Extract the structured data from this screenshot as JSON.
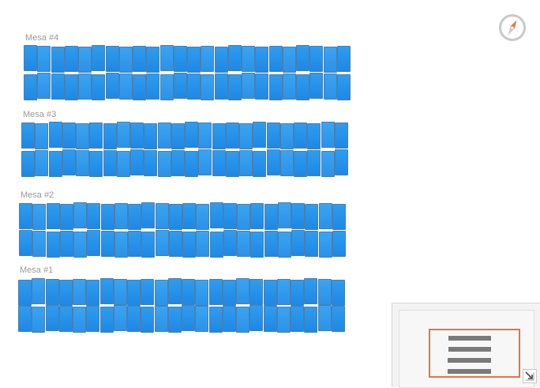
{
  "tables": [
    {
      "id": "mesa-4",
      "label": "Mesa #4",
      "rows": 2,
      "seats_per_row": 24
    },
    {
      "id": "mesa-3",
      "label": "Mesa #3",
      "rows": 2,
      "seats_per_row": 24
    },
    {
      "id": "mesa-2",
      "label": "Mesa #2",
      "rows": 2,
      "seats_per_row": 24
    },
    {
      "id": "mesa-1",
      "label": "Mesa #1",
      "rows": 2,
      "seats_per_row": 24
    }
  ],
  "colors": {
    "seat": "#1e88e5",
    "seat_border": "#4a7fb0",
    "label": "#9a9a9a",
    "compass_needle": "#e8743b",
    "minimap_viewport": "#e8743b",
    "minimap_row": "#7a7a7a"
  },
  "icons": {
    "compass": "compass-icon",
    "minimap_toggle": "minimize-icon"
  }
}
